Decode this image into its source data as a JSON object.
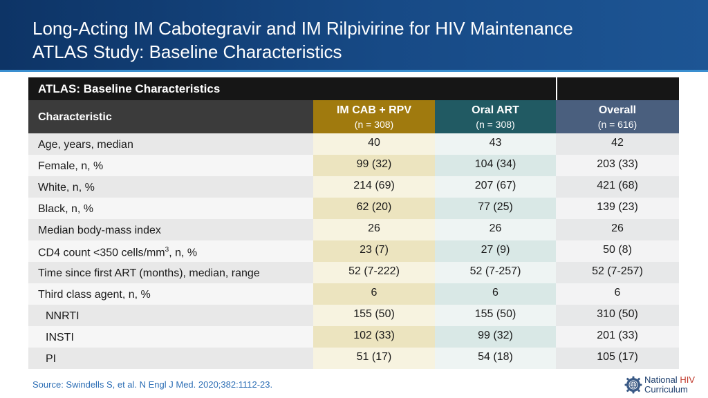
{
  "slide": {
    "title_line1": "Long-Acting IM Cabotegravir and IM Rilpivirine for HIV Maintenance",
    "title_line2": "ATLAS Study: Baseline Characteristics"
  },
  "table": {
    "banner": "ATLAS: Baseline Characteristics",
    "header": {
      "characteristic": "Characteristic",
      "col1_name": "IM CAB + RPV",
      "col1_n": "(n = 308)",
      "col2_name": "Oral ART",
      "col2_n": "(n = 308)",
      "col3_name": "Overall",
      "col3_n": "(n = 616)"
    },
    "rows": [
      {
        "label": "Age, years, median",
        "v1": "40",
        "v2": "43",
        "v3": "42"
      },
      {
        "label": "Female, n, %",
        "v1": "99 (32)",
        "v2": "104 (34)",
        "v3": "203 (33)"
      },
      {
        "label": "White, n, %",
        "v1": "214 (69)",
        "v2": "207 (67)",
        "v3": "421 (68)"
      },
      {
        "label": "Black, n, %",
        "v1": "62 (20)",
        "v2": "77 (25)",
        "v3": "139 (23)"
      },
      {
        "label": "Median body-mass index",
        "v1": "26",
        "v2": "26",
        "v3": "26"
      },
      {
        "label_pre": "CD4 count <350 cells/mm",
        "label_sup": "3",
        "label_post": ", n, %",
        "v1": "23 (7)",
        "v2": "27 (9)",
        "v3": "50 (8)"
      },
      {
        "label": "Time since first ART (months), median, range",
        "v1": "52 (7-222)",
        "v2": "52 (7-257)",
        "v3": "52 (7-257)"
      },
      {
        "label": "Third class agent, n, %",
        "v1": "6",
        "v2": "6",
        "v3": "6"
      },
      {
        "label": "NNRTI",
        "v1": "155 (50)",
        "v2": "155 (50)",
        "v3": "310 (50)"
      },
      {
        "label": "INSTI",
        "v1": "102 (33)",
        "v2": "99 (32)",
        "v3": "201 (33)"
      },
      {
        "label": "PI",
        "v1": "51 (17)",
        "v2": "54 (18)",
        "v3": "105 (17)"
      }
    ]
  },
  "footer": {
    "source": "Source: Swindells S, et al. N Engl J Med. 2020;382:1112-23.",
    "logo_line1_a": "National",
    "logo_line1_b": "HIV",
    "logo_line2": "Curriculum",
    "logo_icon": "gear-globe-icon"
  },
  "colors": {
    "header_bg": "#174a86",
    "cab_rpv": "#a07a0e",
    "oral_art": "#215a63",
    "overall": "#4a5f7e",
    "source_text": "#2c6eb5"
  }
}
